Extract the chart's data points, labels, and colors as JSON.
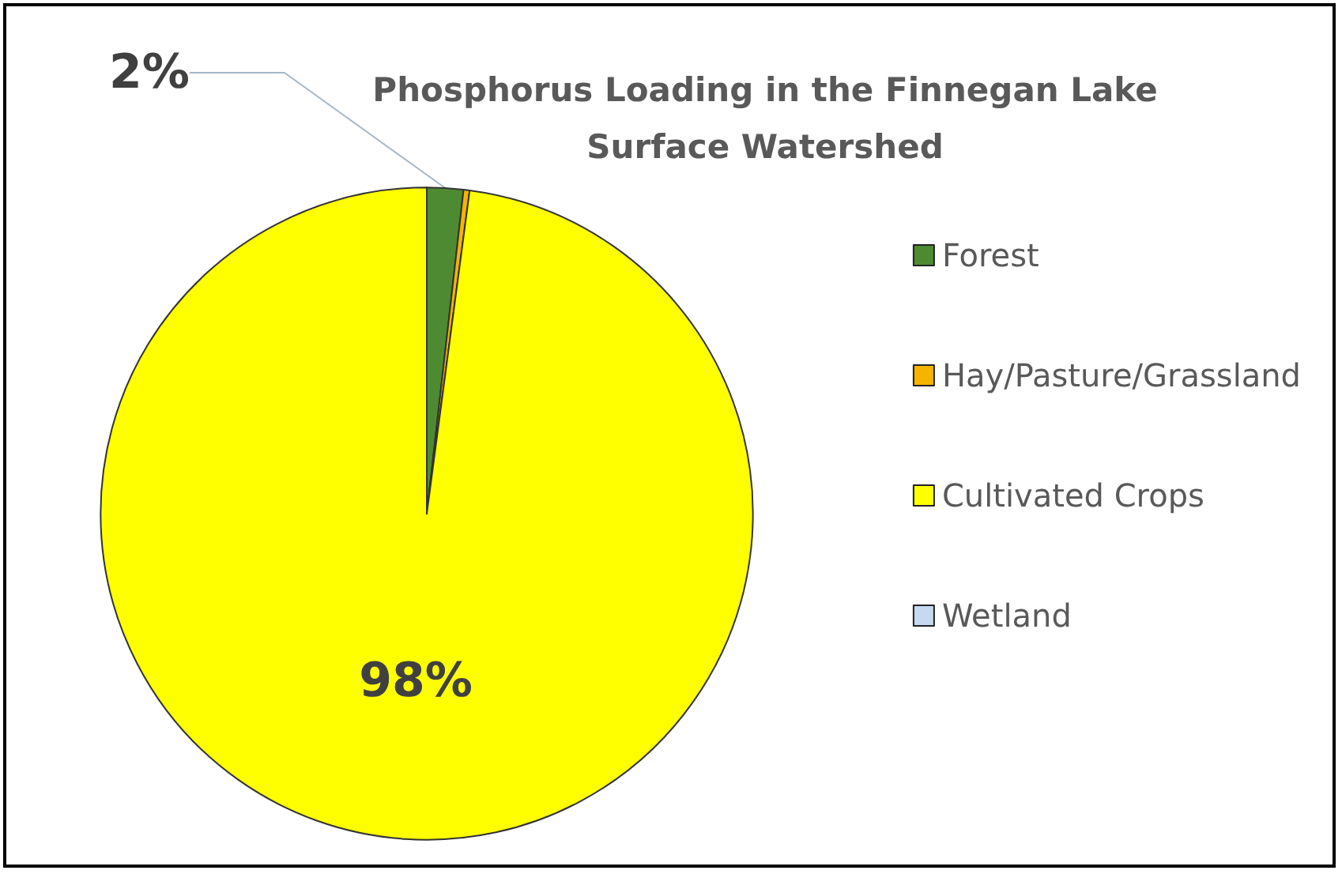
{
  "chart_data": {
    "type": "pie",
    "title": "Phosphorus Loading in the Finnegan Lake\nSurface Watershed",
    "categories": [
      "Forest",
      "Hay/Pasture/Grassland",
      "Cultivated Crops",
      "Wetland"
    ],
    "values": [
      1.8,
      0.3,
      97.9,
      0
    ],
    "colors": [
      "#4e8a32",
      "#f5b400",
      "#ffff00",
      "#c5d9f1"
    ],
    "value_labels": [
      "2%",
      null,
      "98%",
      null
    ],
    "legend": "right"
  }
}
